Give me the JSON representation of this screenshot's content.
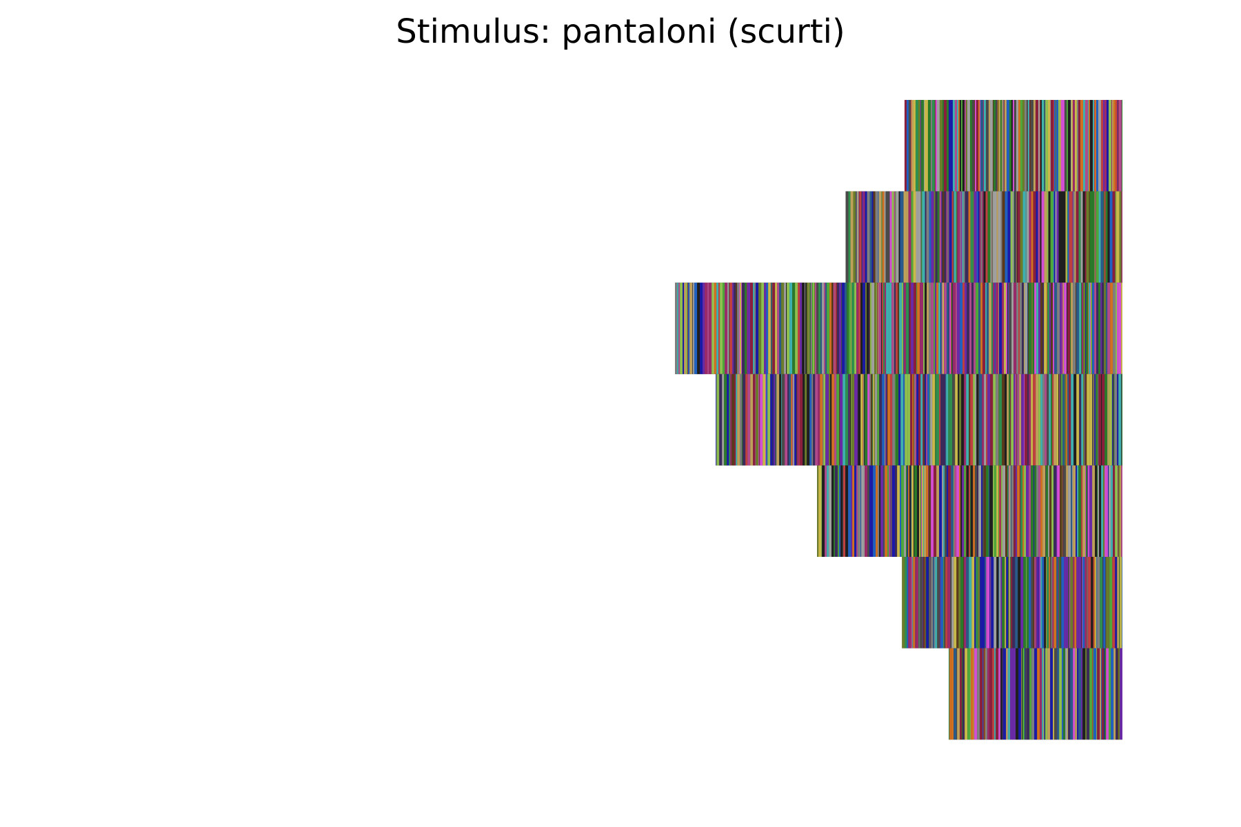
{
  "chart_data": {
    "type": "bar",
    "orientation": "horizontal",
    "title": "Stimulus: pantaloni (scurti)",
    "xlabel": "",
    "ylabel": "",
    "axes_visible": false,
    "grid": false,
    "legend": "none",
    "xlim": [
      0,
      1
    ],
    "bar_alignment": "right",
    "series": [
      {
        "values": [
          0.2235,
          0.2839,
          0.4589,
          0.4171,
          0.3132,
          0.2261,
          0.1781
        ]
      }
    ],
    "segment_palette": [
      "#1f1f1f",
      "#3b2a5c",
      "#1a1aa8",
      "#4fa83a",
      "#2f8f4e",
      "#6b7d2a",
      "#b04a8c",
      "#8a1f3d",
      "#c9b84a",
      "#3fb0b0",
      "#7f7f7f",
      "#a0a0a0",
      "#d44fd4",
      "#5a3a1a",
      "#2a5a8a",
      "#9a2a6a",
      "#4a4a4a",
      "#8fbf4f",
      "#6a2aa8",
      "#bfa05a",
      "#2a7a2a",
      "#c04040",
      "#d07020",
      "#2060c0"
    ]
  }
}
